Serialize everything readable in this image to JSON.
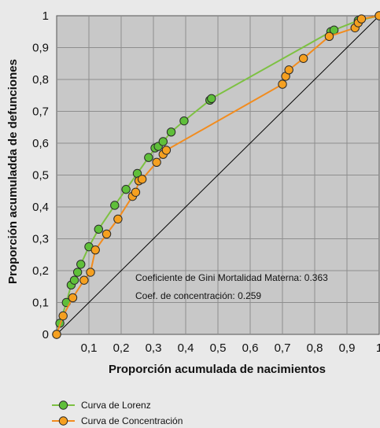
{
  "chart_data": {
    "type": "scatter",
    "xlabel": "Proporción acumulada de nacimientos",
    "ylabel": "Proporción acumuladda de defunciones",
    "xlim": [
      0,
      1
    ],
    "ylim": [
      0,
      1
    ],
    "x_ticks": [
      "0,1",
      "0,2",
      "0,3",
      "0,4",
      "0,5",
      "0,6",
      "0,7",
      "0,8",
      "0,9",
      "1"
    ],
    "y_ticks": [
      "0",
      "0,1",
      "0,2",
      "0,3",
      "0,4",
      "0,5",
      "0,6",
      "0,7",
      "0,8",
      "0,9",
      "1"
    ],
    "grid": true,
    "background_color": "#c8c8c8",
    "annotations": [
      "Coeficiente de Gini Mortalidad Materna: 0.363",
      "Coef. de concentración: 0.259"
    ],
    "legend_position": "bottom-left",
    "equality_line": {
      "x": [
        0,
        1
      ],
      "y": [
        0,
        1
      ],
      "color": "#000000"
    },
    "series": [
      {
        "name": "Curva de Lorenz",
        "color": "#7dc142",
        "marker_color": "#5fbf3a",
        "x": [
          0,
          0.01,
          0.03,
          0.045,
          0.055,
          0.065,
          0.075,
          0.1,
          0.13,
          0.18,
          0.215,
          0.25,
          0.285,
          0.305,
          0.315,
          0.33,
          0.355,
          0.395,
          0.475,
          0.48,
          0.85,
          0.86,
          0.935,
          1
        ],
        "y": [
          0,
          0.035,
          0.1,
          0.155,
          0.17,
          0.195,
          0.22,
          0.275,
          0.33,
          0.405,
          0.455,
          0.505,
          0.555,
          0.585,
          0.59,
          0.605,
          0.635,
          0.67,
          0.735,
          0.74,
          0.95,
          0.955,
          0.985,
          1
        ]
      },
      {
        "name": "Curva de Concentración",
        "color": "#f28c1e",
        "marker_color": "#f5a020",
        "x": [
          0,
          0.02,
          0.05,
          0.085,
          0.105,
          0.12,
          0.155,
          0.19,
          0.235,
          0.245,
          0.255,
          0.265,
          0.31,
          0.33,
          0.34,
          0.7,
          0.71,
          0.72,
          0.765,
          0.845,
          0.925,
          0.935,
          0.945,
          1
        ],
        "y": [
          0,
          0.058,
          0.115,
          0.17,
          0.195,
          0.265,
          0.315,
          0.362,
          0.433,
          0.446,
          0.482,
          0.487,
          0.54,
          0.565,
          0.578,
          0.785,
          0.81,
          0.83,
          0.866,
          0.935,
          0.962,
          0.978,
          0.99,
          1
        ]
      }
    ]
  }
}
